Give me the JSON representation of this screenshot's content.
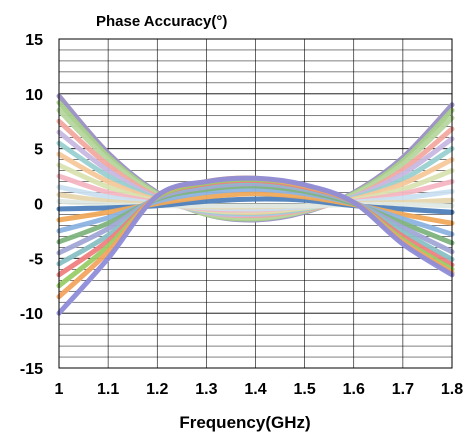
{
  "chart_data": {
    "type": "line",
    "title": "Phase Accuracy(°)",
    "xlabel": "Frequency(GHz)",
    "ylabel": "",
    "xlim": [
      1.0,
      1.8
    ],
    "ylim": [
      -15,
      15
    ],
    "x_ticks": [
      "1",
      "1.1",
      "1.2",
      "1.3",
      "1.4",
      "1.5",
      "1.6",
      "1.7",
      "1.8"
    ],
    "y_ticks": [
      "15",
      "10",
      "5",
      "0",
      "-5",
      "-10",
      "-15"
    ],
    "grid": true,
    "legend": "none",
    "x": [
      1.0,
      1.1,
      1.2,
      1.3,
      1.4,
      1.5,
      1.6,
      1.7,
      1.8
    ],
    "series": [
      {
        "color": "#9b8fc4",
        "values": [
          9.8,
          4.6,
          1.0,
          -1.0,
          -1.5,
          -0.8,
          1.0,
          4.2,
          9.0
        ]
      },
      {
        "color": "#a8cf8a",
        "values": [
          9.2,
          4.3,
          0.9,
          -1.0,
          -1.4,
          -0.7,
          0.9,
          3.9,
          8.5
        ]
      },
      {
        "color": "#b7d7a0",
        "values": [
          8.5,
          4.0,
          0.8,
          -0.9,
          -1.3,
          -0.7,
          0.8,
          3.6,
          7.8
        ]
      },
      {
        "color": "#f2a9a0",
        "values": [
          7.5,
          3.5,
          0.6,
          -0.8,
          -1.1,
          -0.6,
          0.6,
          3.1,
          6.8
        ]
      },
      {
        "color": "#c7b8e0",
        "values": [
          6.5,
          3.0,
          0.5,
          -0.8,
          -1.0,
          -0.5,
          0.6,
          2.7,
          5.9
        ]
      },
      {
        "color": "#9ad0d0",
        "values": [
          5.5,
          2.5,
          0.4,
          -0.7,
          -0.9,
          -0.5,
          0.5,
          2.2,
          5.0
        ]
      },
      {
        "color": "#f6c89a",
        "values": [
          4.5,
          2.0,
          0.3,
          -0.6,
          -0.8,
          -0.4,
          0.4,
          1.8,
          4.0
        ]
      },
      {
        "color": "#d9e3b0",
        "values": [
          3.5,
          1.5,
          0.2,
          -0.6,
          -0.7,
          -0.4,
          0.3,
          1.3,
          3.0
        ]
      },
      {
        "color": "#f4b6c2",
        "values": [
          2.5,
          1.0,
          0.1,
          -0.5,
          -0.6,
          -0.3,
          0.2,
          0.9,
          2.0
        ]
      },
      {
        "color": "#c9dff0",
        "values": [
          1.5,
          0.6,
          0.0,
          -0.4,
          -0.5,
          -0.3,
          0.1,
          0.5,
          1.1
        ]
      },
      {
        "color": "#e6d6ad",
        "values": [
          0.8,
          0.2,
          -0.1,
          -0.3,
          -0.3,
          -0.2,
          0.0,
          0.1,
          0.3
        ]
      },
      {
        "color": "#dfe8e4",
        "values": [
          0.2,
          -0.1,
          -0.2,
          -0.2,
          -0.2,
          -0.2,
          -0.1,
          -0.1,
          -0.2
        ]
      },
      {
        "color": "#4f81bd",
        "values": [
          -0.5,
          -0.4,
          -0.2,
          0.2,
          0.4,
          0.3,
          -0.2,
          -0.5,
          -0.8
        ]
      },
      {
        "color": "#f0a95a",
        "values": [
          -1.5,
          -0.8,
          0.0,
          0.6,
          0.9,
          0.6,
          -0.1,
          -1.0,
          -1.8
        ]
      },
      {
        "color": "#8db3e2",
        "values": [
          -2.5,
          -1.3,
          0.2,
          1.0,
          1.3,
          0.9,
          0.0,
          -1.4,
          -2.8
        ]
      },
      {
        "color": "#7fb47f",
        "values": [
          -3.5,
          -1.8,
          0.4,
          1.3,
          1.6,
          1.1,
          0.0,
          -1.8,
          -3.6
        ]
      },
      {
        "color": "#a2a7d6",
        "values": [
          -4.5,
          -2.3,
          0.5,
          1.5,
          1.8,
          1.3,
          0.1,
          -2.2,
          -4.4
        ]
      },
      {
        "color": "#88c0c5",
        "values": [
          -5.5,
          -2.9,
          0.6,
          1.7,
          2.0,
          1.4,
          0.1,
          -2.6,
          -5.1
        ]
      },
      {
        "color": "#f08080",
        "values": [
          -6.5,
          -3.4,
          0.6,
          1.8,
          2.1,
          1.5,
          0.1,
          -3.0,
          -5.6
        ]
      },
      {
        "color": "#9acd68",
        "values": [
          -7.5,
          -3.9,
          0.6,
          1.9,
          2.2,
          1.6,
          0.1,
          -3.3,
          -6.0
        ]
      },
      {
        "color": "#f4a460",
        "values": [
          -8.5,
          -4.4,
          0.7,
          2.0,
          2.3,
          1.6,
          0.1,
          -3.5,
          -6.3
        ]
      },
      {
        "color": "#8e8cd8",
        "values": [
          -10.0,
          -5.0,
          0.7,
          2.0,
          2.3,
          1.7,
          0.1,
          -3.7,
          -6.5
        ]
      }
    ]
  }
}
